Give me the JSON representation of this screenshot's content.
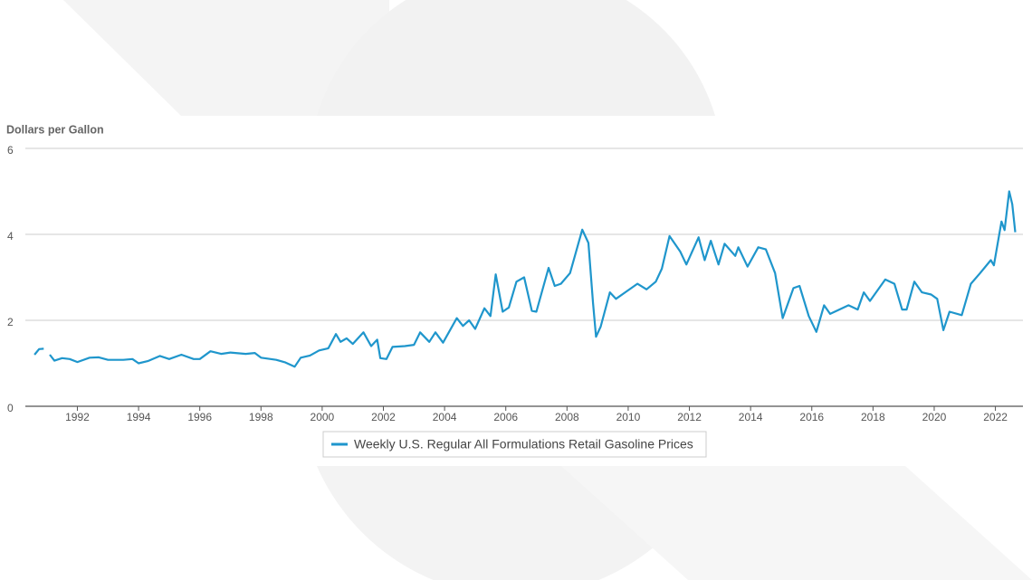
{
  "chart_data": {
    "type": "line",
    "y_label": "Dollars per Gallon",
    "xlim": [
      1990.3,
      2022.9
    ],
    "xticks": [
      1992,
      1994,
      1996,
      1998,
      2000,
      2002,
      2004,
      2006,
      2008,
      2010,
      2012,
      2014,
      2016,
      2018,
      2020,
      2022
    ],
    "ylim": [
      0,
      6
    ],
    "yticks": [
      0,
      2,
      4,
      6
    ],
    "grid": true,
    "legend": "bottom",
    "x": [
      1990.6,
      1990.75,
      1990.9,
      1991.0,
      1991.1,
      1991.25,
      1991.5,
      1991.75,
      1992.0,
      1992.4,
      1992.7,
      1993.0,
      1993.5,
      1993.8,
      1994.0,
      1994.3,
      1994.7,
      1995.0,
      1995.4,
      1995.8,
      1996.0,
      1996.35,
      1996.7,
      1997.0,
      1997.5,
      1997.8,
      1998.0,
      1998.5,
      1998.8,
      1999.1,
      1999.3,
      1999.6,
      1999.9,
      2000.2,
      2000.45,
      2000.6,
      2000.8,
      2001.0,
      2001.35,
      2001.6,
      2001.8,
      2001.9,
      2002.1,
      2002.3,
      2002.7,
      2003.0,
      2003.2,
      2003.5,
      2003.7,
      2003.95,
      2004.4,
      2004.6,
      2004.8,
      2005.0,
      2005.3,
      2005.5,
      2005.67,
      2005.9,
      2006.1,
      2006.35,
      2006.6,
      2006.85,
      2007.0,
      2007.4,
      2007.6,
      2007.8,
      2008.1,
      2008.5,
      2008.7,
      2008.85,
      2008.95,
      2009.1,
      2009.4,
      2009.6,
      2009.9,
      2010.3,
      2010.6,
      2010.9,
      2011.1,
      2011.35,
      2011.7,
      2011.9,
      2012.3,
      2012.5,
      2012.7,
      2012.95,
      2013.15,
      2013.5,
      2013.6,
      2013.9,
      2014.25,
      2014.5,
      2014.8,
      2015.05,
      2015.4,
      2015.6,
      2015.9,
      2016.15,
      2016.4,
      2016.6,
      2016.9,
      2017.2,
      2017.5,
      2017.7,
      2017.9,
      2018.4,
      2018.7,
      2018.95,
      2019.1,
      2019.35,
      2019.6,
      2019.9,
      2020.1,
      2020.3,
      2020.5,
      2020.9,
      2021.2,
      2021.5,
      2021.85,
      2021.95,
      2022.2,
      2022.3,
      2022.45,
      2022.55,
      2022.65
    ],
    "series": [
      {
        "name": "Weekly U.S. Regular All Formulations Retail Gasoline Prices",
        "color": "#1f96cc",
        "values": [
          1.2,
          1.33,
          1.34,
          null,
          1.2,
          1.06,
          1.12,
          1.1,
          1.03,
          1.13,
          1.14,
          1.08,
          1.08,
          1.1,
          1.0,
          1.05,
          1.17,
          1.1,
          1.2,
          1.1,
          1.1,
          1.28,
          1.22,
          1.25,
          1.22,
          1.24,
          1.13,
          1.08,
          1.02,
          0.92,
          1.13,
          1.18,
          1.3,
          1.35,
          1.68,
          1.5,
          1.58,
          1.45,
          1.72,
          1.4,
          1.55,
          1.12,
          1.1,
          1.38,
          1.4,
          1.43,
          1.72,
          1.5,
          1.72,
          1.48,
          2.05,
          1.87,
          2.0,
          1.8,
          2.28,
          2.1,
          3.07,
          2.2,
          2.3,
          2.9,
          3.0,
          2.22,
          2.2,
          3.22,
          2.8,
          2.85,
          3.1,
          4.11,
          3.8,
          2.4,
          1.62,
          1.85,
          2.65,
          2.5,
          2.65,
          2.85,
          2.72,
          2.9,
          3.2,
          3.96,
          3.6,
          3.3,
          3.93,
          3.4,
          3.85,
          3.3,
          3.78,
          3.5,
          3.7,
          3.25,
          3.7,
          3.65,
          3.1,
          2.05,
          2.75,
          2.8,
          2.1,
          1.73,
          2.35,
          2.15,
          2.25,
          2.35,
          2.25,
          2.65,
          2.45,
          2.95,
          2.85,
          2.25,
          2.25,
          2.9,
          2.65,
          2.6,
          2.5,
          1.77,
          2.2,
          2.12,
          2.85,
          3.1,
          3.4,
          3.28,
          4.3,
          4.1,
          5.0,
          4.7,
          4.05
        ]
      }
    ]
  }
}
